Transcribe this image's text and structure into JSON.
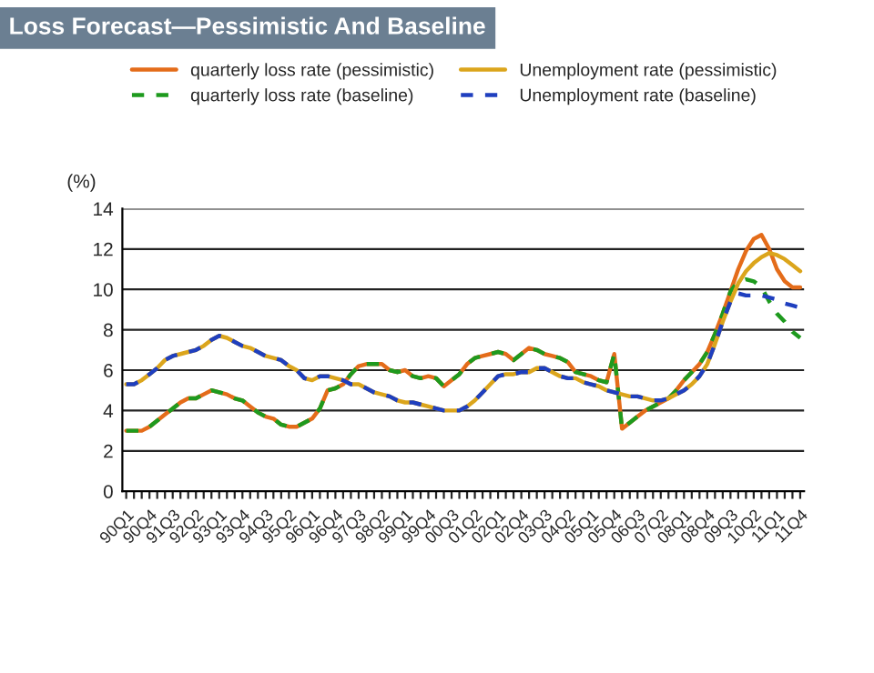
{
  "chart_data": {
    "type": "line",
    "title": "Loss Forecast—Pessimistic And Baseline",
    "ylabel": "(%)",
    "categories": [
      "90Q1",
      null,
      null,
      "90Q4",
      null,
      null,
      "91Q3",
      null,
      null,
      "92Q2",
      null,
      null,
      "93Q1",
      null,
      null,
      "93Q4",
      null,
      null,
      "94Q3",
      null,
      null,
      "95Q2",
      null,
      null,
      "96Q1",
      null,
      null,
      "96Q4",
      null,
      null,
      "97Q3",
      null,
      null,
      "98Q2",
      null,
      null,
      "99Q1",
      null,
      null,
      "99Q4",
      null,
      null,
      "00Q3",
      null,
      null,
      "01Q2",
      null,
      null,
      "02Q1",
      null,
      null,
      "02Q4",
      null,
      null,
      "03Q3",
      null,
      null,
      "04Q2",
      null,
      null,
      "05Q1",
      null,
      null,
      "05Q4",
      null,
      null,
      "06Q3",
      null,
      null,
      "07Q2",
      null,
      null,
      "08Q1",
      null,
      null,
      "08Q4",
      null,
      null,
      "09Q3",
      null,
      null,
      "10Q2",
      null,
      null,
      "11Q1",
      null,
      null,
      "11Q4"
    ],
    "series": [
      {
        "name": "quarterly loss rate (pessimistic)",
        "color": "#e46c1a",
        "line_style": "solid",
        "values": [
          3.0,
          3.0,
          3.0,
          3.2,
          3.5,
          3.8,
          4.1,
          4.4,
          4.6,
          4.6,
          4.8,
          5.0,
          4.9,
          4.8,
          4.6,
          4.5,
          4.2,
          3.9,
          3.7,
          3.6,
          3.3,
          3.2,
          3.2,
          3.4,
          3.6,
          4.1,
          5.0,
          5.1,
          5.3,
          5.8,
          6.2,
          6.3,
          6.3,
          6.3,
          6.0,
          5.9,
          6.0,
          5.7,
          5.6,
          5.7,
          5.6,
          5.2,
          5.5,
          5.8,
          6.3,
          6.6,
          6.7,
          6.8,
          6.9,
          6.8,
          6.5,
          6.8,
          7.1,
          7.0,
          6.8,
          6.7,
          6.6,
          6.4,
          5.9,
          5.8,
          5.7,
          5.5,
          5.4,
          6.8,
          3.1,
          3.4,
          3.7,
          4.0,
          4.2,
          4.4,
          4.6,
          5.0,
          5.5,
          5.9,
          6.3,
          6.9,
          7.8,
          8.8,
          9.9,
          11.0,
          11.9,
          12.5,
          12.7,
          12.0,
          11.0,
          10.4,
          10.1,
          10.1
        ]
      },
      {
        "name": "quarterly loss rate (baseline)",
        "color": "#1e9a1e",
        "line_style": "dashed",
        "values": [
          3.0,
          3.0,
          3.0,
          3.2,
          3.5,
          3.8,
          4.1,
          4.4,
          4.6,
          4.6,
          4.8,
          5.0,
          4.9,
          4.8,
          4.6,
          4.5,
          4.2,
          3.9,
          3.7,
          3.6,
          3.3,
          3.2,
          3.2,
          3.4,
          3.6,
          4.1,
          5.0,
          5.1,
          5.3,
          5.8,
          6.2,
          6.3,
          6.3,
          6.3,
          6.0,
          5.9,
          6.0,
          5.7,
          5.6,
          5.7,
          5.6,
          5.2,
          5.5,
          5.8,
          6.3,
          6.6,
          6.7,
          6.8,
          6.9,
          6.8,
          6.5,
          6.8,
          7.1,
          7.0,
          6.8,
          6.7,
          6.6,
          6.4,
          5.9,
          5.8,
          5.7,
          5.5,
          5.4,
          6.8,
          3.1,
          3.4,
          3.7,
          4.0,
          4.2,
          4.4,
          4.6,
          5.0,
          5.5,
          5.9,
          6.3,
          6.9,
          7.8,
          8.8,
          9.9,
          10.4,
          10.5,
          10.4,
          10.1,
          9.4,
          8.8,
          8.4,
          7.9,
          7.6
        ]
      },
      {
        "name": "Unemployment rate (pessimistic)",
        "color": "#dba51c",
        "line_style": "solid",
        "values": [
          5.3,
          5.3,
          5.5,
          5.8,
          6.1,
          6.5,
          6.7,
          6.8,
          6.9,
          7.0,
          7.2,
          7.5,
          7.7,
          7.6,
          7.4,
          7.2,
          7.1,
          6.9,
          6.7,
          6.6,
          6.5,
          6.2,
          6.0,
          5.6,
          5.5,
          5.7,
          5.7,
          5.6,
          5.5,
          5.3,
          5.3,
          5.1,
          4.9,
          4.8,
          4.7,
          4.5,
          4.4,
          4.4,
          4.3,
          4.2,
          4.1,
          4.0,
          4.0,
          4.0,
          4.2,
          4.5,
          4.9,
          5.3,
          5.7,
          5.8,
          5.8,
          5.9,
          5.9,
          6.1,
          6.1,
          5.9,
          5.7,
          5.6,
          5.6,
          5.4,
          5.3,
          5.2,
          5.0,
          4.9,
          4.8,
          4.7,
          4.7,
          4.6,
          4.5,
          4.5,
          4.6,
          4.8,
          5.0,
          5.3,
          5.7,
          6.3,
          7.3,
          8.4,
          9.4,
          10.3,
          10.9,
          11.3,
          11.6,
          11.8,
          11.7,
          11.5,
          11.2,
          10.9
        ]
      },
      {
        "name": "Unemployment rate (baseline)",
        "color": "#1f3fbf",
        "line_style": "dashed",
        "values": [
          5.3,
          5.3,
          5.5,
          5.8,
          6.1,
          6.5,
          6.7,
          6.8,
          6.9,
          7.0,
          7.2,
          7.5,
          7.7,
          7.6,
          7.4,
          7.2,
          7.1,
          6.9,
          6.7,
          6.6,
          6.5,
          6.2,
          6.0,
          5.6,
          5.5,
          5.7,
          5.7,
          5.6,
          5.5,
          5.3,
          5.3,
          5.1,
          4.9,
          4.8,
          4.7,
          4.5,
          4.4,
          4.4,
          4.3,
          4.2,
          4.1,
          4.0,
          4.0,
          4.0,
          4.2,
          4.5,
          4.9,
          5.3,
          5.7,
          5.8,
          5.8,
          5.9,
          5.9,
          6.1,
          6.1,
          5.9,
          5.7,
          5.6,
          5.6,
          5.4,
          5.3,
          5.2,
          5.0,
          4.9,
          4.8,
          4.7,
          4.7,
          4.6,
          4.5,
          4.5,
          4.6,
          4.8,
          5.0,
          5.3,
          5.7,
          6.3,
          7.3,
          8.4,
          9.4,
          9.8,
          9.7,
          9.7,
          9.7,
          9.6,
          9.5,
          9.3,
          9.2,
          9.1
        ]
      }
    ],
    "ylim": [
      0,
      14
    ],
    "yticks": [
      0,
      2,
      4,
      6,
      8,
      10,
      12,
      14
    ],
    "grid": "y",
    "legend": "top",
    "marker": "none"
  }
}
